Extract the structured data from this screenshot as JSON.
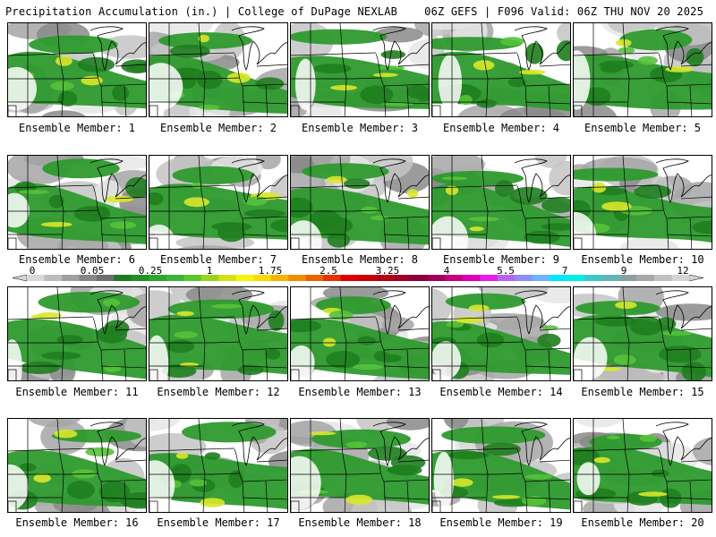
{
  "header": {
    "title": "Precipitation Accumulation (in.) | College of DuPage NEXLAB",
    "run_info": "06Z GEFS | F096 Valid: 06Z THU NOV 20 2025"
  },
  "member_label_prefix": "Ensemble Member:",
  "members": [
    1,
    2,
    3,
    4,
    5,
    6,
    7,
    8,
    9,
    10,
    11,
    12,
    13,
    14,
    15,
    16,
    17,
    18,
    19,
    20
  ],
  "colorbar": {
    "tick_labels": [
      "0",
      "0.05",
      "0.25",
      "1",
      "1.75",
      "2.5",
      "3.25",
      "4",
      "5.5",
      "7",
      "9",
      "12"
    ],
    "colors": [
      "#d8d8d8",
      "#bcbcbc",
      "#a0a0a0",
      "#868686",
      "#6e6e6e",
      "#1e7a1e",
      "#249024",
      "#2ea62e",
      "#3cb43c",
      "#5ac82a",
      "#9ad21e",
      "#d2e214",
      "#f5f50a",
      "#fadc00",
      "#f5b400",
      "#f08c00",
      "#eb6400",
      "#e63200",
      "#dc0000",
      "#c80000",
      "#b40014",
      "#a00028",
      "#8c003c",
      "#a0005a",
      "#c80078",
      "#dc00b4",
      "#e61ee6",
      "#b464f0",
      "#8c8cf5",
      "#6eb4fa",
      "#00e6ff",
      "#00f0e6",
      "#3cc8c8",
      "#64b4b4",
      "#8ca0a0",
      "#a8a8a8",
      "#c0c0c0",
      "#d4d4d4"
    ]
  },
  "legend_colors": {
    "trace": "#e6e6e6",
    "light_gray": "#c4c4c4",
    "gray": "#a6a6a6",
    "dark_gray": "#8a8a8a",
    "green": "#2e9a2e",
    "dark_green": "#1f7e1f",
    "light_green": "#56c23a",
    "yellow": "#d8e82a",
    "border": "#000000"
  }
}
